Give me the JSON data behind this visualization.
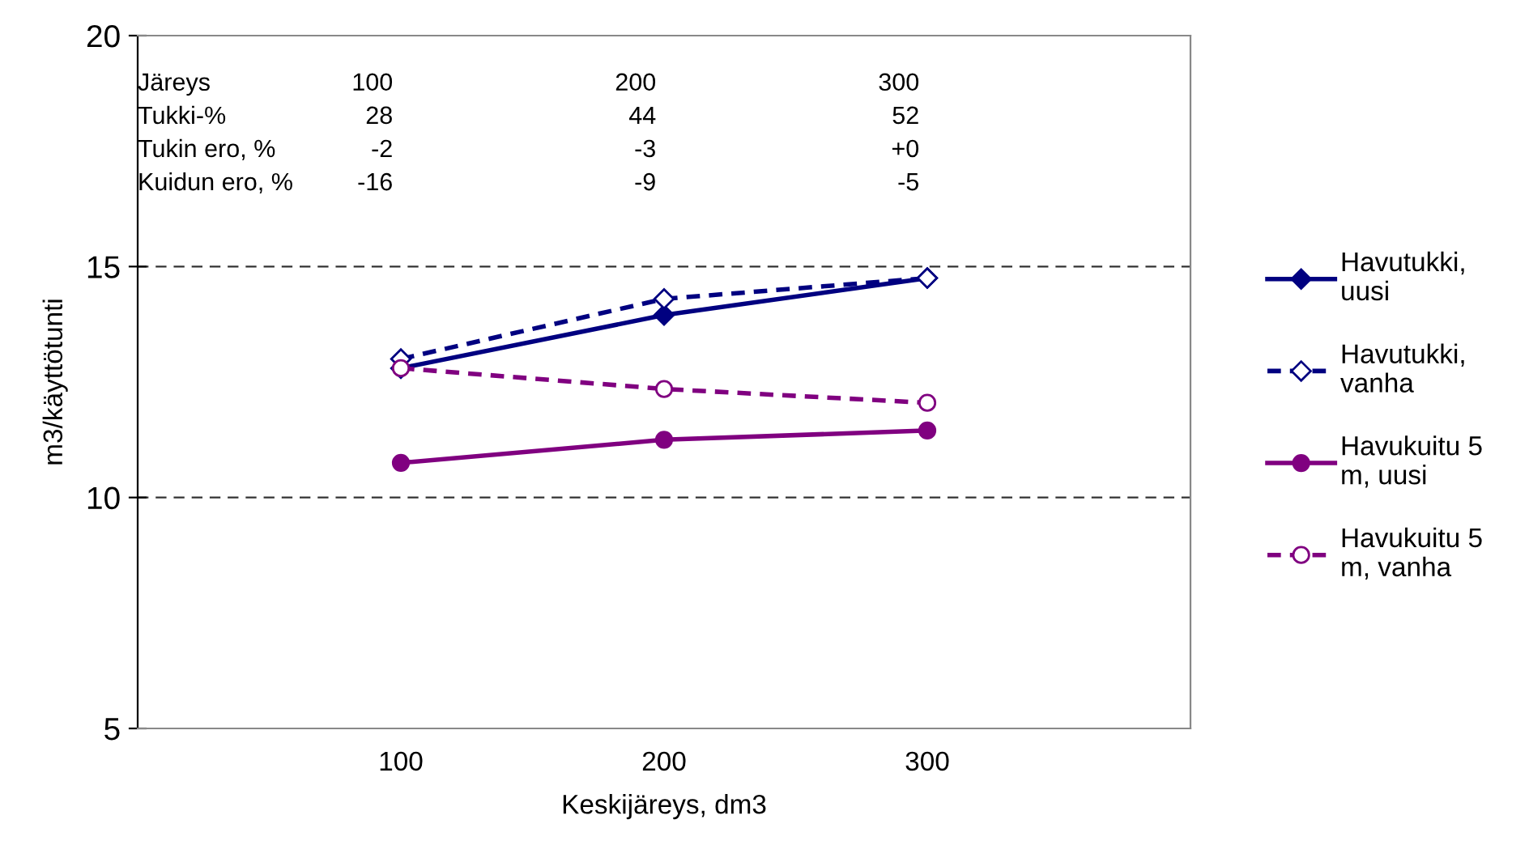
{
  "chart_data": {
    "type": "line",
    "xlabel": "Keskijäreys, dm3",
    "ylabel": "m3/käyttötunti",
    "x": [
      100,
      200,
      300
    ],
    "series": [
      {
        "name": "Havutukki,\nuusi",
        "color": "#000080",
        "values": [
          12.8,
          13.95,
          14.75
        ],
        "marker": "diamond",
        "line_style": "solid"
      },
      {
        "name": "Havutukki,\nvanha",
        "color": "#000080",
        "values": [
          13.0,
          14.3,
          14.75
        ],
        "marker": "diamond",
        "line_style": "dashed"
      },
      {
        "name": "Havukuitu 5\nm, uusi",
        "color": "#800080",
        "values": [
          10.75,
          11.25,
          11.45
        ],
        "marker": "circle",
        "line_style": "solid"
      },
      {
        "name": "Havukuitu 5\nm, vanha",
        "color": "#800080",
        "values": [
          12.8,
          12.35,
          12.05
        ],
        "marker": "circle",
        "line_style": "dashed"
      }
    ],
    "xlim": [
      0,
      400
    ],
    "xticks": [
      100,
      200,
      300
    ],
    "ylim": [
      5,
      20
    ],
    "yticks": [
      5,
      10,
      15,
      20
    ],
    "grid": "y",
    "legend": "right",
    "annotations": [
      "Järeys",
      "100",
      "200",
      "300",
      "Tukki-%",
      "28",
      "44",
      "52",
      "Tukin ero, %",
      "-2",
      "-3",
      "+0",
      "Kuidun ero, %",
      "-16",
      "-9",
      "-5"
    ]
  }
}
